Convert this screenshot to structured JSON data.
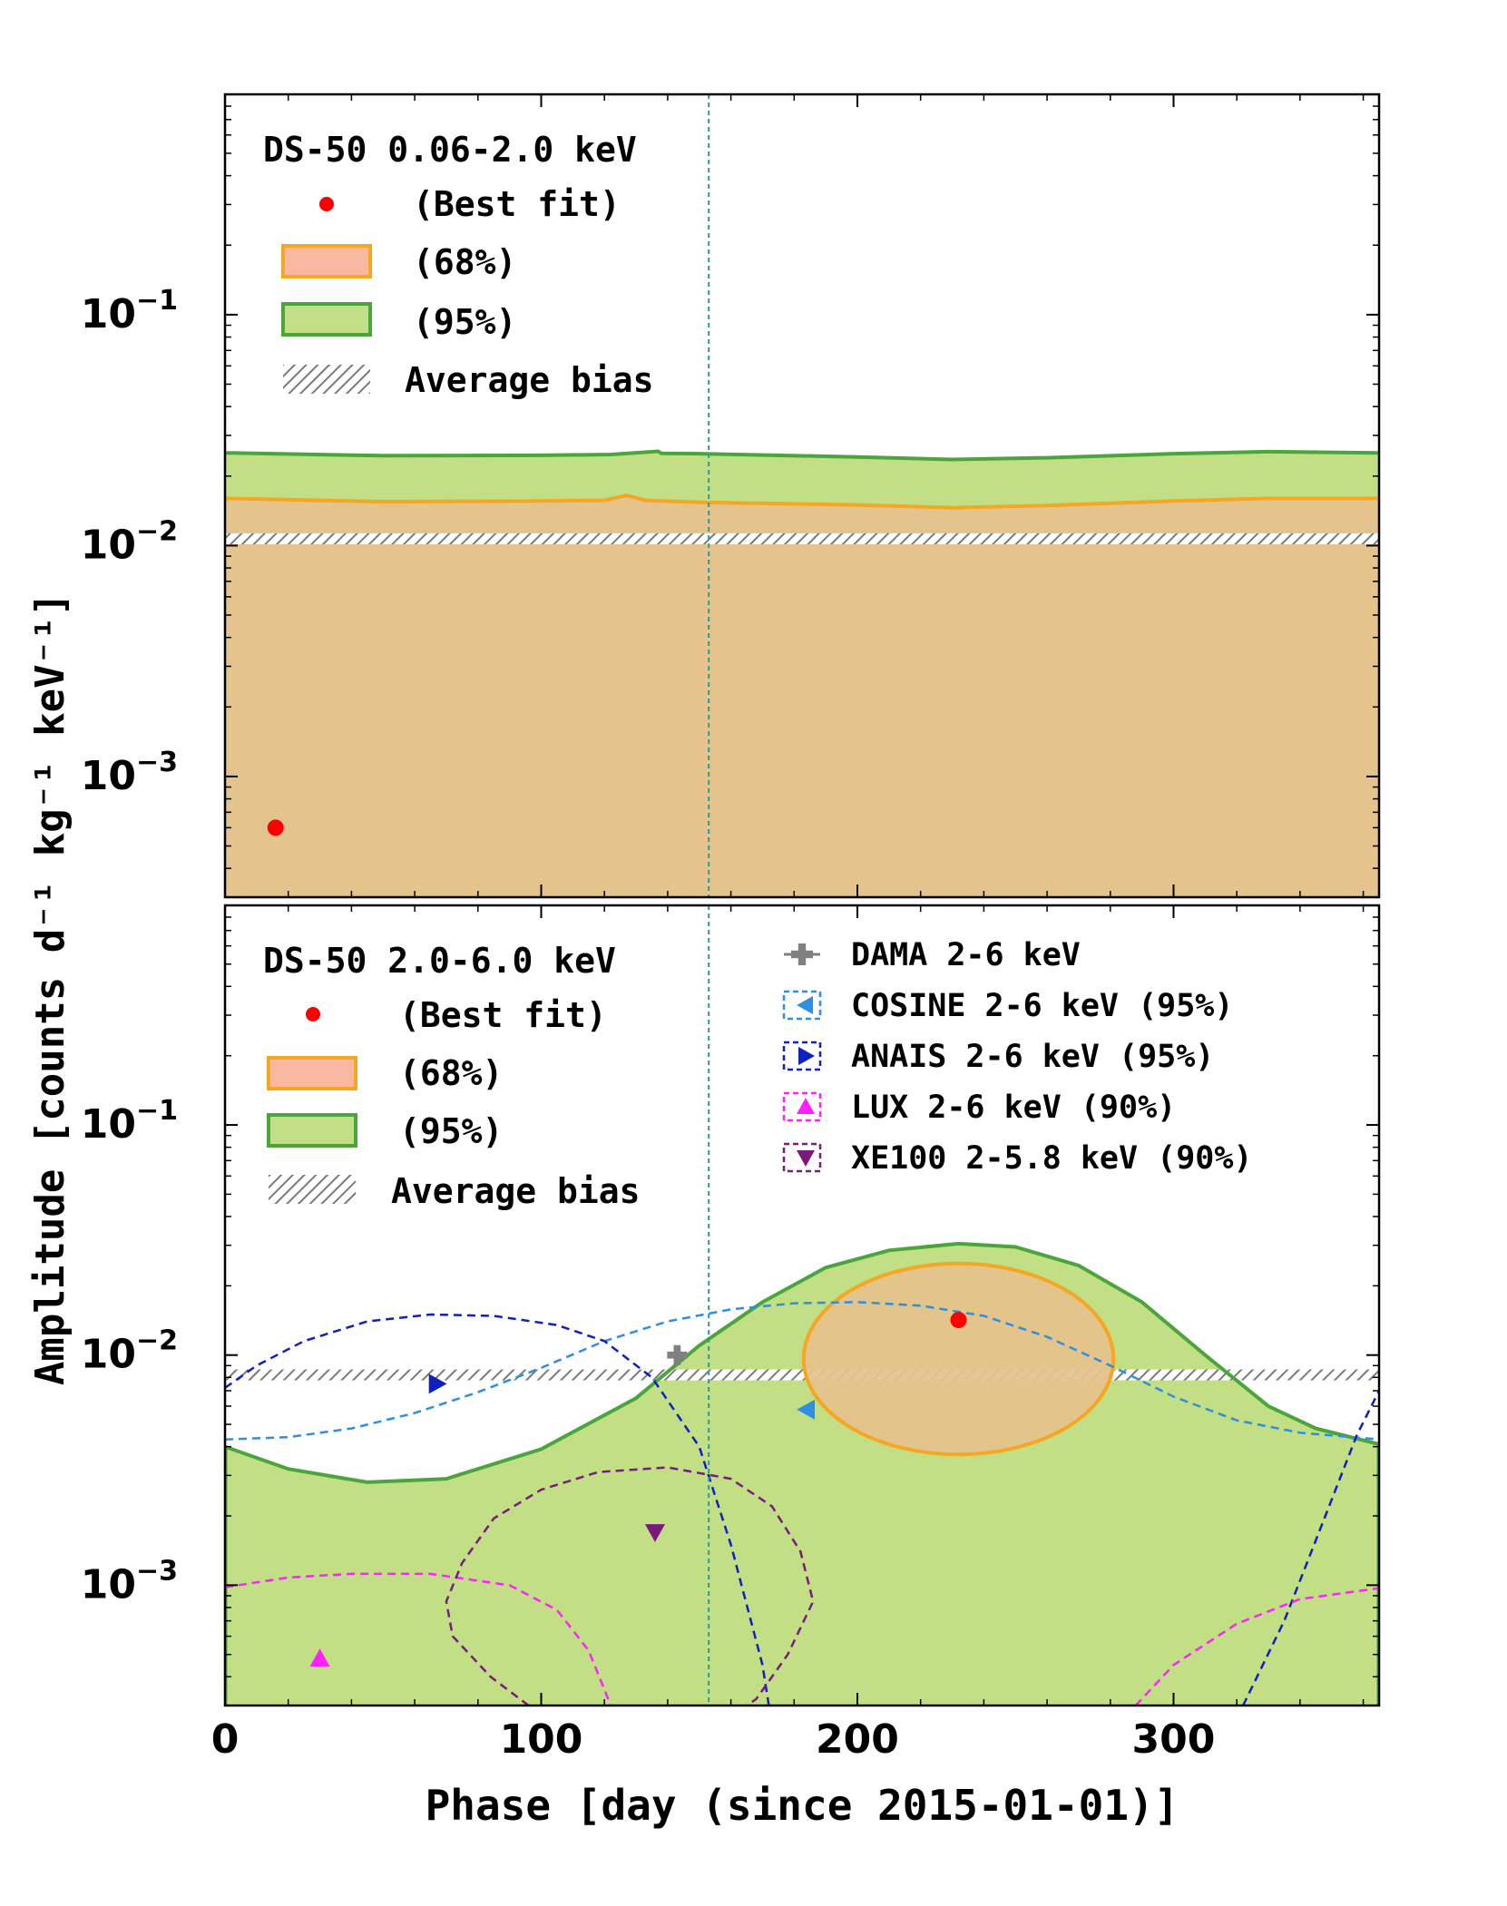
{
  "figure": {
    "ylabel": "Amplitude [counts d⁻¹ kg⁻¹ keV⁻¹]",
    "xlabel": "Phase [day (since 2015-01-01)]"
  },
  "colors": {
    "band68_fill": "#e5c38c",
    "band68_edge": "#f5a623",
    "band68_legend_fill": "#f9b9a0",
    "band95_fill": "#c2df85",
    "band95_edge": "#4aa53a",
    "bestfit": "#ff0000",
    "bias": "#808080",
    "vline": "#2a9a9a",
    "dama": "#808080",
    "cosine": "#2e8ee0",
    "anais": "#1020c0",
    "lux": "#ff20ff",
    "xe100": "#7a1a7a"
  },
  "chart_data": [
    {
      "type": "area",
      "panel": "top",
      "legend_title": "DS-50 0.06-2.0 keV",
      "legend": [
        {
          "key": "bestfit",
          "label": "(Best fit)"
        },
        {
          "key": "band68",
          "label": "(68%)"
        },
        {
          "key": "band95",
          "label": "(95%)"
        },
        {
          "key": "bias",
          "label": "Average bias"
        }
      ],
      "xlim": [
        0,
        365
      ],
      "ylim": [
        0.0003,
        0.9
      ],
      "yscale": "log",
      "y_ticks": [
        {
          "value": 0.001,
          "base": "10",
          "exp": "−3"
        },
        {
          "value": 0.01,
          "base": "10",
          "exp": "−2"
        },
        {
          "value": 0.1,
          "base": "10",
          "exp": "−1"
        }
      ],
      "x_ticks": [
        0,
        100,
        200,
        300
      ],
      "vline_x": 153,
      "bias_level": 0.0107,
      "best_fit": {
        "x": 16,
        "y": 0.0006
      },
      "band95_upper": {
        "x": [
          0,
          50,
          100,
          122,
          137,
          138,
          150,
          200,
          230,
          260,
          300,
          330,
          365
        ],
        "y": [
          0.0252,
          0.0245,
          0.0246,
          0.0248,
          0.0256,
          0.0251,
          0.025,
          0.0242,
          0.0236,
          0.024,
          0.025,
          0.0255,
          0.0252
        ]
      },
      "band68_upper": {
        "x": [
          0,
          50,
          100,
          120,
          127,
          133,
          150,
          200,
          230,
          260,
          300,
          330,
          365
        ],
        "y": [
          0.016,
          0.0155,
          0.0156,
          0.0157,
          0.0165,
          0.0157,
          0.0154,
          0.015,
          0.0146,
          0.0149,
          0.0156,
          0.016,
          0.016
        ]
      }
    },
    {
      "type": "area",
      "panel": "bottom",
      "legend_title": "DS-50 2.0-6.0 keV",
      "legend": [
        {
          "key": "bestfit",
          "label": "(Best fit)"
        },
        {
          "key": "band68",
          "label": "(68%)"
        },
        {
          "key": "band95",
          "label": "(95%)"
        },
        {
          "key": "bias",
          "label": "Average bias"
        }
      ],
      "legend2": [
        {
          "key": "dama",
          "label": "DAMA 2-6 keV"
        },
        {
          "key": "cosine",
          "label": "COSINE 2-6 keV (95%)"
        },
        {
          "key": "anais",
          "label": "ANAIS 2-6 keV (95%)"
        },
        {
          "key": "lux",
          "label": "LUX 2-6 keV (90%)"
        },
        {
          "key": "xe100",
          "label": "XE100 2-5.8 keV (90%)"
        }
      ],
      "xlim": [
        0,
        365
      ],
      "ylim": [
        0.0003,
        0.9
      ],
      "yscale": "log",
      "y_ticks": [
        {
          "value": 0.001,
          "base": "10",
          "exp": "−3"
        },
        {
          "value": 0.01,
          "base": "10",
          "exp": "−2"
        },
        {
          "value": 0.1,
          "base": "10",
          "exp": "−1"
        }
      ],
      "x_ticks": [
        0,
        100,
        200,
        300
      ],
      "vline_x": 153,
      "bias_level": 0.0082,
      "best_fit": {
        "x": 232,
        "y": 0.0142
      },
      "band95_upper": {
        "x": [
          0,
          20,
          45,
          70,
          100,
          130,
          150,
          170,
          190,
          210,
          232,
          250,
          270,
          290,
          310,
          330,
          345,
          365
        ],
        "y": [
          0.004,
          0.0032,
          0.0028,
          0.0029,
          0.0039,
          0.0065,
          0.011,
          0.017,
          0.024,
          0.0285,
          0.0305,
          0.0295,
          0.0245,
          0.017,
          0.01,
          0.006,
          0.0048,
          0.0041
        ]
      },
      "ellipse68": {
        "x_center": 232,
        "x_halfwidth": 49,
        "y_min": 0.0037,
        "y_max": 0.025
      },
      "points": [
        {
          "key": "dama",
          "marker": "plus",
          "x": 143,
          "y": 0.01
        },
        {
          "key": "cosine",
          "marker": "triangle-left",
          "x": 184,
          "y": 0.0058
        },
        {
          "key": "anais",
          "marker": "triangle-right",
          "x": 67,
          "y": 0.0075
        },
        {
          "key": "lux",
          "marker": "triangle-up",
          "x": 30,
          "y": 0.00048
        },
        {
          "key": "xe100",
          "marker": "triangle-down",
          "x": 136,
          "y": 0.0017
        }
      ],
      "contours": [
        {
          "key": "cosine",
          "closed": false,
          "points": [
            [
              0,
              0.0043
            ],
            [
              20,
              0.0044
            ],
            [
              40,
              0.0048
            ],
            [
              60,
              0.0056
            ],
            [
              80,
              0.0069
            ],
            [
              100,
              0.0088
            ],
            [
              120,
              0.0115
            ],
            [
              140,
              0.014
            ],
            [
              160,
              0.0158
            ],
            [
              180,
              0.0168
            ],
            [
              200,
              0.017
            ],
            [
              220,
              0.0164
            ],
            [
              240,
              0.0148
            ],
            [
              260,
              0.012
            ],
            [
              280,
              0.009
            ],
            [
              300,
              0.0066
            ],
            [
              320,
              0.0052
            ],
            [
              340,
              0.0046
            ],
            [
              365,
              0.0043
            ]
          ]
        },
        {
          "key": "anais",
          "closed": false,
          "points": [
            [
              0,
              0.0072
            ],
            [
              10,
              0.009
            ],
            [
              25,
              0.0115
            ],
            [
              45,
              0.014
            ],
            [
              65,
              0.015
            ],
            [
              85,
              0.0148
            ],
            [
              105,
              0.0135
            ],
            [
              120,
              0.0115
            ],
            [
              135,
              0.008
            ],
            [
              150,
              0.004
            ],
            [
              160,
              0.0015
            ],
            [
              170,
              0.00045
            ],
            [
              172,
              0.0003
            ]
          ]
        },
        {
          "key": "anais",
          "closed": false,
          "points": [
            [
              322,
              0.0003
            ],
            [
              335,
              0.0007
            ],
            [
              348,
              0.002
            ],
            [
              358,
              0.0045
            ],
            [
              365,
              0.007
            ]
          ]
        },
        {
          "key": "lux",
          "closed": false,
          "points": [
            [
              0,
              0.00098
            ],
            [
              20,
              0.00108
            ],
            [
              40,
              0.00112
            ],
            [
              65,
              0.00112
            ],
            [
              90,
              0.001
            ],
            [
              105,
              0.00078
            ],
            [
              115,
              0.00052
            ],
            [
              122,
              0.0003
            ]
          ]
        },
        {
          "key": "lux",
          "closed": false,
          "points": [
            [
              288,
              0.0003
            ],
            [
              300,
              0.00045
            ],
            [
              320,
              0.00068
            ],
            [
              340,
              0.00087
            ],
            [
              365,
              0.00097
            ]
          ]
        },
        {
          "key": "xe100",
          "closed": false,
          "points": [
            [
              96,
              0.0003
            ],
            [
              84,
              0.0004
            ],
            [
              72,
              0.0006
            ],
            [
              70,
              0.00085
            ],
            [
              75,
              0.00125
            ],
            [
              85,
              0.00195
            ],
            [
              100,
              0.0026
            ],
            [
              118,
              0.0031
            ],
            [
              140,
              0.00325
            ],
            [
              160,
              0.0029
            ],
            [
              173,
              0.0022
            ],
            [
              182,
              0.0014
            ],
            [
              186,
              0.00085
            ],
            [
              178,
              0.0005
            ],
            [
              168,
              0.00032
            ],
            [
              165,
              0.0003
            ]
          ]
        }
      ]
    }
  ]
}
